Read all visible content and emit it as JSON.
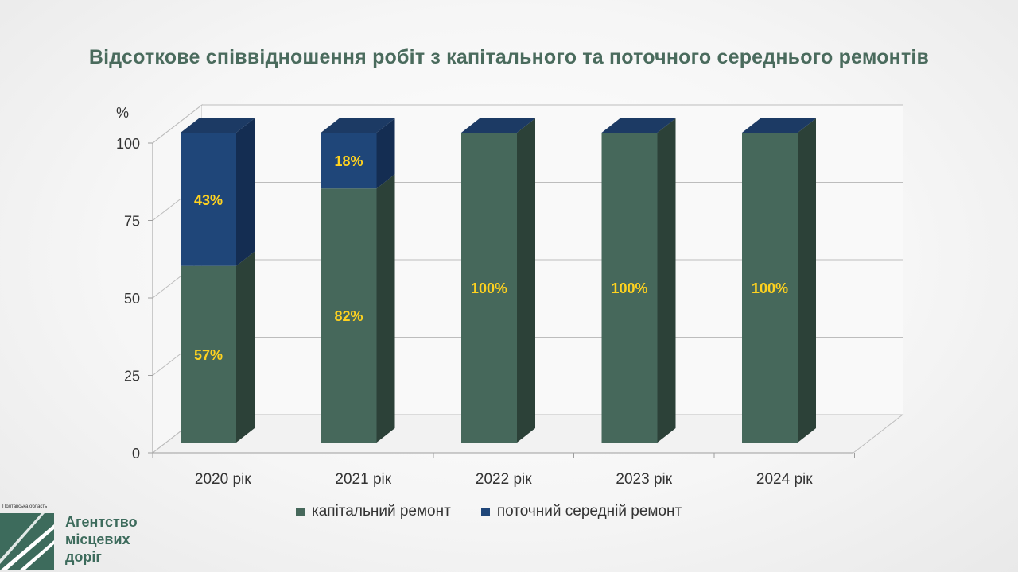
{
  "title": "Відсоткове співвідношення робіт з капітального та поточного середнього ремонтів",
  "colors": {
    "capital": "#46685b",
    "capital_side": "#2c4138",
    "capital_top": "#5a7c6e",
    "current": "#1f4679",
    "current_side": "#142d52",
    "current_top": "#1c3a64",
    "label": "#ffd21f"
  },
  "chart_data": {
    "type": "bar",
    "stacked": true,
    "three_d": true,
    "ylabel": "%",
    "ylim": [
      0,
      100
    ],
    "yticks": [
      0,
      25,
      50,
      75,
      100
    ],
    "categories": [
      "2020 рік",
      "2021 рік",
      "2022 рік",
      "2023 рік",
      "2024 рік"
    ],
    "series": [
      {
        "name": "капітальний ремонт",
        "values": [
          57,
          82,
          100,
          100,
          100
        ],
        "labels": [
          "57%",
          "82%",
          "100%",
          "100%",
          "100%"
        ]
      },
      {
        "name": "поточний середній ремонт",
        "values": [
          43,
          18,
          0,
          0,
          0
        ],
        "labels": [
          "43%",
          "18%",
          "",
          "",
          ""
        ]
      }
    ],
    "legend_position": "bottom",
    "grid": true
  },
  "logo": {
    "region": "Полтавська область",
    "line1": "Агентство",
    "line2": "місцевих",
    "line3": "доріг"
  }
}
